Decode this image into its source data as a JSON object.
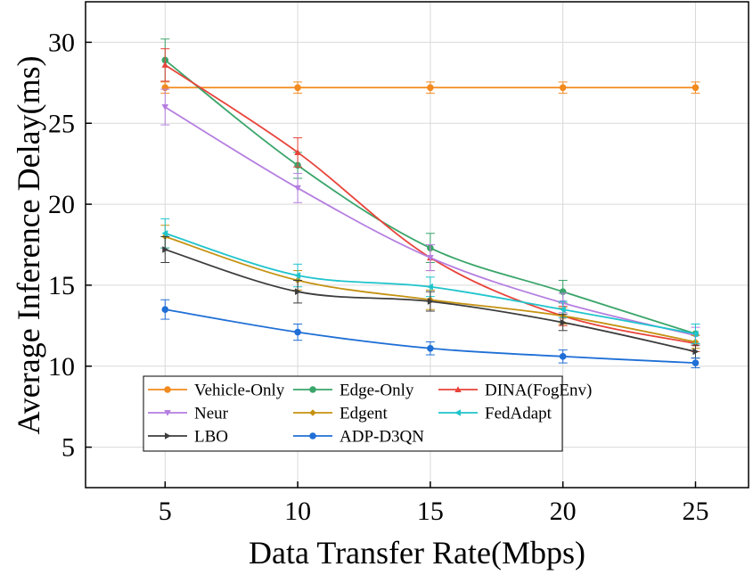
{
  "chart_data": {
    "type": "line",
    "title": "",
    "xlabel": "Data Transfer Rate(Mbps)",
    "ylabel": "Average Inference Delay(ms)",
    "x": [
      5,
      10,
      15,
      20,
      25
    ],
    "xlim": [
      2,
      27
    ],
    "ylim": [
      2.5,
      32.5
    ],
    "xticks": [
      "5",
      "10",
      "15",
      "20",
      "25"
    ],
    "yticks": [
      "5",
      "10",
      "15",
      "20",
      "25",
      "30"
    ],
    "grid": true,
    "legend_position": "bottom-left",
    "series": [
      {
        "name": "Vehicle-Only",
        "color": "#f28a1e",
        "marker": "circle",
        "values": [
          27.2,
          27.2,
          27.2,
          27.2,
          27.2
        ],
        "errors": [
          0.35,
          0.35,
          0.35,
          0.35,
          0.35
        ]
      },
      {
        "name": "Edge-Only",
        "color": "#3aa56a",
        "marker": "circle",
        "values": [
          28.9,
          22.4,
          17.3,
          14.6,
          12.0
        ],
        "errors": [
          1.3,
          0.8,
          0.9,
          0.7,
          0.6
        ]
      },
      {
        "name": "DINA(FogEnv)",
        "color": "#e8433a",
        "marker": "triangle-up",
        "values": [
          28.6,
          23.2,
          16.7,
          13.1,
          11.4
        ],
        "errors": [
          1.0,
          0.9,
          0.8,
          0.6,
          0.5
        ]
      },
      {
        "name": "Neur",
        "color": "#b57ee0",
        "marker": "triangle-down",
        "values": [
          26.0,
          21.0,
          16.7,
          13.9,
          11.9
        ],
        "errors": [
          1.1,
          0.9,
          0.8,
          0.6,
          0.5
        ]
      },
      {
        "name": "Edgent",
        "color": "#c59211",
        "marker": "diamond",
        "values": [
          18.0,
          15.3,
          14.1,
          13.1,
          11.5
        ],
        "errors": [
          0.7,
          0.6,
          0.6,
          0.5,
          0.4
        ]
      },
      {
        "name": "FedAdapt",
        "color": "#1fc4cc",
        "marker": "triangle-left",
        "values": [
          18.2,
          15.6,
          14.9,
          13.5,
          12.0
        ],
        "errors": [
          0.9,
          0.7,
          0.6,
          0.5,
          0.6
        ]
      },
      {
        "name": "LBO",
        "color": "#3c3c3c",
        "marker": "triangle-right",
        "values": [
          17.2,
          14.6,
          14.0,
          12.7,
          10.9
        ],
        "errors": [
          0.8,
          0.7,
          0.6,
          0.5,
          0.4
        ]
      },
      {
        "name": "ADP-D3QN",
        "color": "#1f6fd6",
        "marker": "circle",
        "values": [
          13.5,
          12.1,
          11.1,
          10.6,
          10.2
        ],
        "errors": [
          0.6,
          0.5,
          0.4,
          0.4,
          0.3
        ]
      }
    ]
  }
}
